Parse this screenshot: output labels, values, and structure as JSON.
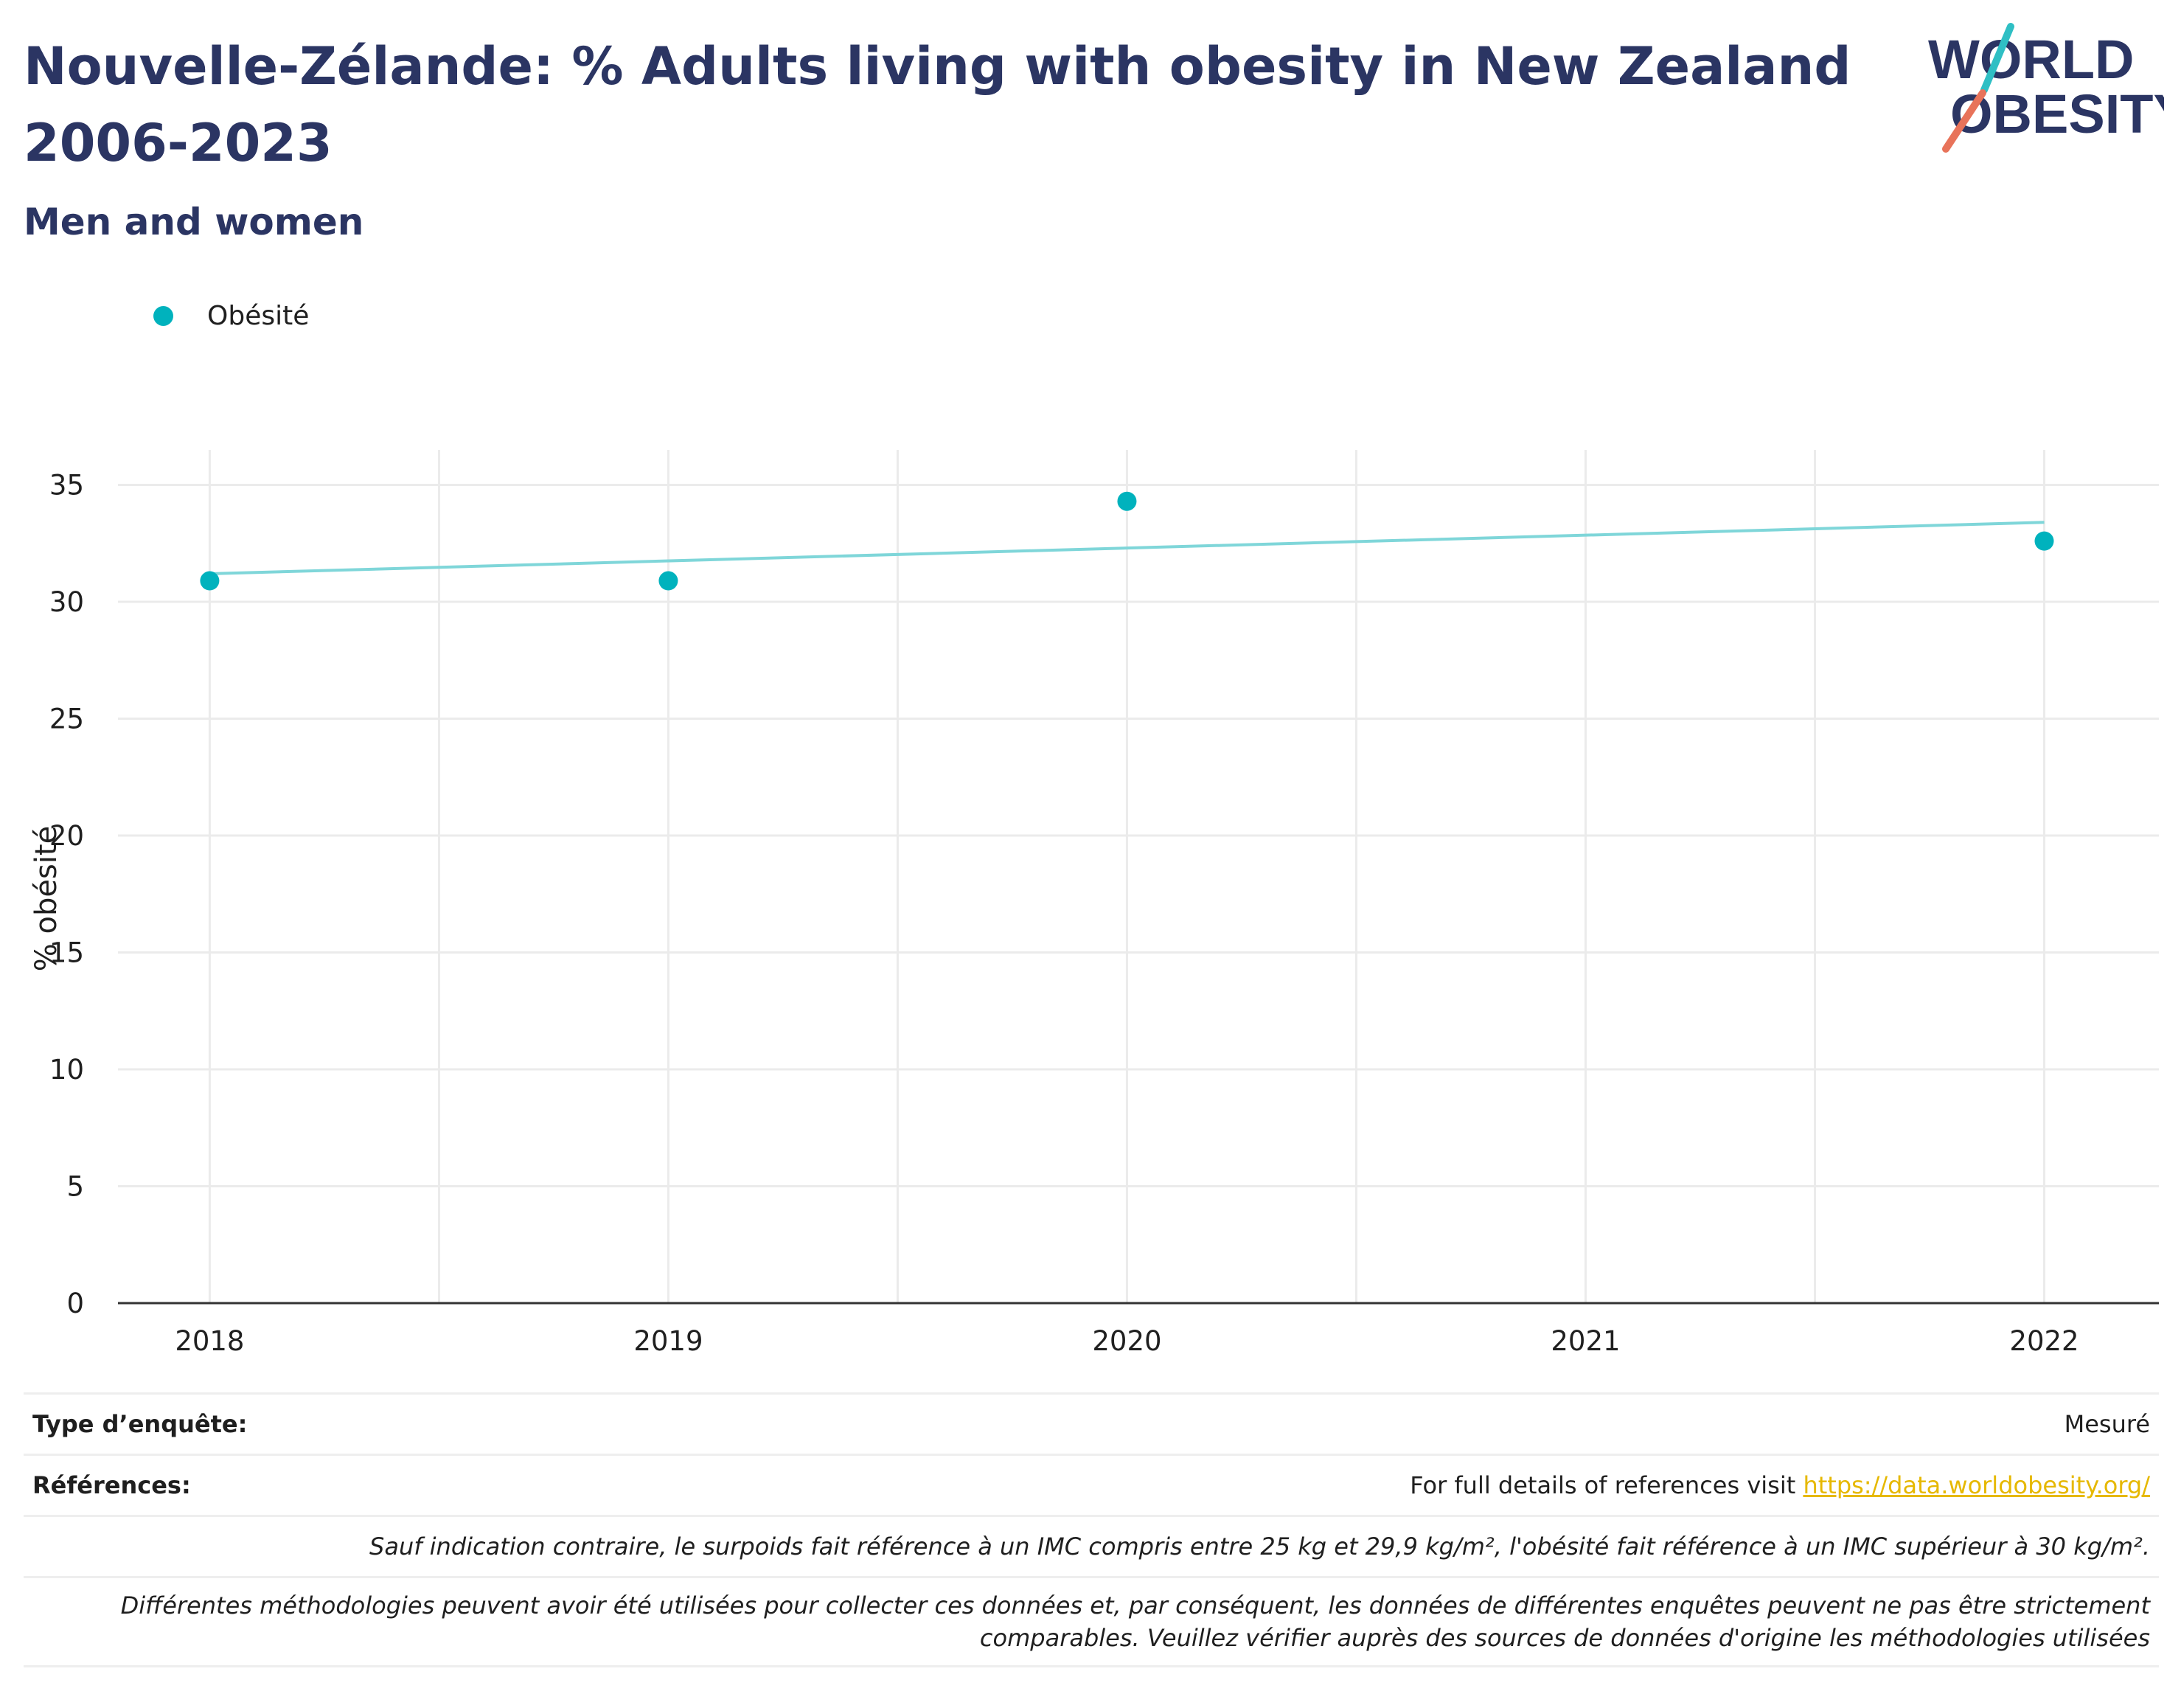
{
  "header": {
    "title": "Nouvelle-Zélande: % Adults living with obesity in New Zealand 2006-2023",
    "subtitle": "Men and women",
    "logo": {
      "line1": "WORLD",
      "line2": "OBESITY",
      "colors": {
        "text": "#2b3563",
        "slash_top": "#2fbfc4",
        "slash_bottom": "#e8735a"
      }
    }
  },
  "legend": {
    "label": "Obésité",
    "color": "#00b2bd"
  },
  "chart_data": {
    "type": "scatter",
    "ylabel": "% obésité",
    "xlabel": "",
    "x_ticks": [
      "2018",
      "2019",
      "2020",
      "2021",
      "2022"
    ],
    "y_ticks": [
      0,
      5,
      10,
      15,
      20,
      25,
      30,
      35
    ],
    "xlim": [
      2017.8,
      2022.25
    ],
    "ylim": [
      0,
      36.5
    ],
    "grid": true,
    "series": [
      {
        "name": "Obésité",
        "color": "#00b2bd",
        "points": [
          {
            "x": 2018,
            "y": 30.9
          },
          {
            "x": 2019,
            "y": 30.9
          },
          {
            "x": 2020,
            "y": 34.3
          },
          {
            "x": 2022,
            "y": 32.6
          }
        ]
      }
    ],
    "trendline": {
      "color": "#7fd6d9",
      "from": {
        "x": 2018,
        "y": 31.2
      },
      "to": {
        "x": 2022,
        "y": 33.4
      }
    }
  },
  "footer": {
    "survey_type_label": "Type d’enquête:",
    "survey_type_value": "Mesuré",
    "references_label": "Références:",
    "references_text": "For full details of references visit ",
    "references_link": "https://data.worldobesity.org/",
    "note1": "Sauf indication contraire, le surpoids fait référence à un IMC compris entre 25 kg et 29,9 kg/m², l'obésité fait référence à un IMC supérieur à 30 kg/m².",
    "note2_line1": "Différentes méthodologies peuvent avoir été utilisées pour collecter ces données et, par conséquent, les données de différentes enquêtes peuvent ne pas être strictement",
    "note2_line2": "comparables. Veuillez vérifier auprès des sources de données d'origine les méthodologies utilisées"
  }
}
